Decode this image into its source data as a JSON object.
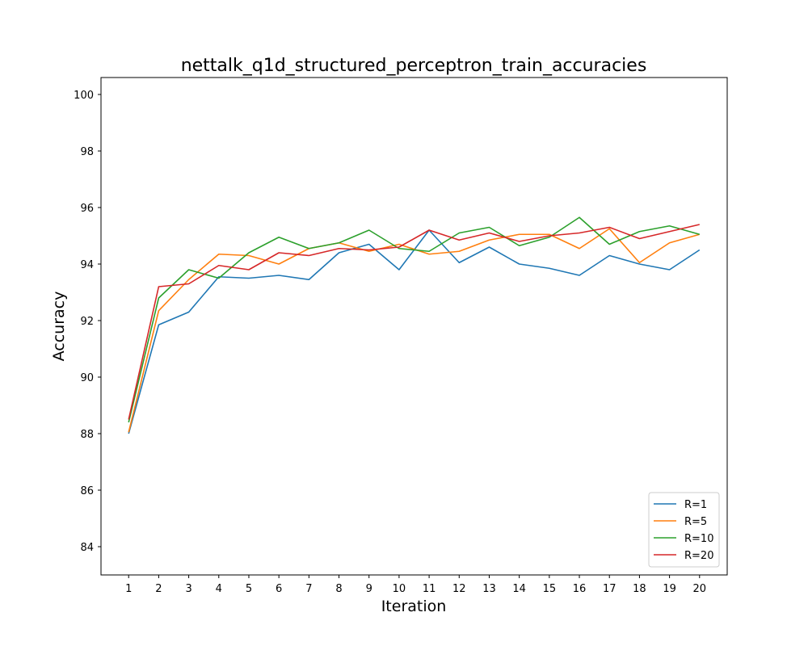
{
  "chart_data": {
    "type": "line",
    "title": "nettalk_q1d_structured_perceptron_train_accuracies",
    "xlabel": "Iteration",
    "ylabel": "Accuracy",
    "x": [
      1,
      2,
      3,
      4,
      5,
      6,
      7,
      8,
      9,
      10,
      11,
      12,
      13,
      14,
      15,
      16,
      17,
      18,
      19,
      20
    ],
    "xlim": [
      0.08,
      20.92
    ],
    "ylim": [
      83,
      100.6
    ],
    "yticks": [
      84,
      86,
      88,
      90,
      92,
      94,
      96,
      98,
      100
    ],
    "grid": false,
    "legend_position": "lower-right",
    "series": [
      {
        "name": "R=1",
        "color": "#1f77b4",
        "values": [
          88.0,
          91.85,
          92.3,
          93.55,
          93.5,
          93.6,
          93.45,
          94.4,
          94.7,
          93.8,
          95.2,
          94.05,
          94.6,
          94.0,
          93.85,
          93.6,
          94.3,
          94.0,
          93.8,
          94.5
        ]
      },
      {
        "name": "R=5",
        "color": "#ff7f0e",
        "values": [
          88.05,
          92.35,
          93.45,
          94.35,
          94.3,
          94.0,
          94.55,
          94.75,
          94.45,
          94.7,
          94.35,
          94.45,
          94.85,
          95.05,
          95.05,
          94.55,
          95.25,
          94.05,
          94.75,
          95.05
        ]
      },
      {
        "name": "R=10",
        "color": "#2ca02c",
        "values": [
          88.4,
          92.8,
          93.8,
          93.5,
          94.4,
          94.95,
          94.55,
          94.75,
          95.2,
          94.55,
          94.45,
          95.1,
          95.3,
          94.65,
          94.95,
          95.65,
          94.7,
          95.15,
          95.35,
          95.05
        ]
      },
      {
        "name": "R=20",
        "color": "#d62728",
        "values": [
          88.5,
          93.2,
          93.3,
          93.95,
          93.8,
          94.4,
          94.3,
          94.55,
          94.5,
          94.6,
          95.2,
          94.85,
          95.1,
          94.8,
          95.0,
          95.1,
          95.3,
          94.9,
          95.15,
          95.4
        ]
      }
    ]
  }
}
